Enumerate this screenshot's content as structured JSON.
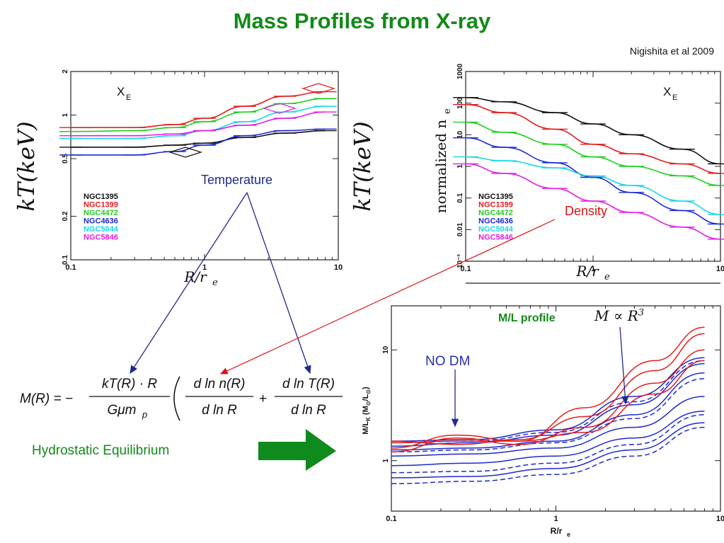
{
  "title": "Mass Profiles from X-ray",
  "citation": "Nigishita et al 2009",
  "annotations": {
    "temperature": "Temperature",
    "density": "Density",
    "no_dm": "NO DM",
    "ml_profile": "M/L profile",
    "hydrostatic": "Hydrostatic Equilibrium",
    "m_prop": "M ∝ R",
    "m_prop_exp": "3"
  },
  "colors": {
    "title_green": "#138a19",
    "arrow_green": "#0f8a1c",
    "navy": "#1f2a8a",
    "red": "#dd1111"
  },
  "equation": {
    "lhs": "M(R) = −",
    "frac1_num": "kT(R) · R",
    "frac1_den": "Gμm",
    "frac1_den_sub": "p",
    "frac2_num": "d ln n(R)",
    "frac2_den": "d ln R",
    "plus": "+",
    "frac3_num": "d ln T(R)",
    "frac3_den": "d ln R"
  },
  "chart_data": [
    {
      "type": "line",
      "panel": "temperature",
      "panel_label": "X",
      "panel_label_sub": "E",
      "ylabel": "kT(keV)",
      "xlabel": "R/r",
      "xlabel_sub": "e",
      "xscale": "log",
      "yscale": "log",
      "xlim": [
        0.1,
        10
      ],
      "ylim": [
        0.1,
        2
      ],
      "xticks": [
        "0.1",
        "1",
        "10"
      ],
      "yticks": [
        {
          "v": 0.1,
          "label": "0.1"
        },
        {
          "v": 0.2,
          "label": "0.2"
        },
        {
          "v": 0.5,
          "label": "0.5"
        },
        {
          "v": 1,
          "label": "1"
        },
        {
          "v": 2,
          "label": "2"
        }
      ],
      "legend_position": "bottom-left",
      "series": [
        {
          "name": "NGC1395",
          "color": "#111111",
          "x": [
            0.1,
            0.3,
            0.6,
            1,
            2,
            4,
            8
          ],
          "y": [
            0.6,
            0.6,
            0.62,
            0.64,
            0.7,
            0.75,
            0.78
          ]
        },
        {
          "name": "NGC1399",
          "color": "#e21d1d",
          "x": [
            0.1,
            0.3,
            0.6,
            1,
            2,
            4,
            8
          ],
          "y": [
            0.82,
            0.82,
            0.86,
            0.95,
            1.15,
            1.35,
            1.45
          ]
        },
        {
          "name": "NGC4472",
          "color": "#1fcf1f",
          "x": [
            0.1,
            0.3,
            0.6,
            1,
            2,
            4,
            8
          ],
          "y": [
            0.77,
            0.78,
            0.82,
            0.9,
            1.05,
            1.2,
            1.3
          ]
        },
        {
          "name": "NGC4636",
          "color": "#1f2acf",
          "x": [
            0.1,
            0.3,
            0.6,
            1,
            2,
            4,
            8
          ],
          "y": [
            0.53,
            0.53,
            0.56,
            0.62,
            0.72,
            0.78,
            0.8
          ]
        },
        {
          "name": "NGC5044",
          "color": "#19d6e6",
          "x": [
            0.1,
            0.3,
            0.6,
            1,
            2,
            4,
            8
          ],
          "y": [
            0.69,
            0.69,
            0.72,
            0.78,
            0.9,
            1.05,
            1.15
          ]
        },
        {
          "name": "NGC5846",
          "color": "#e21de6",
          "x": [
            0.1,
            0.3,
            0.6,
            1,
            2,
            4,
            8
          ],
          "y": [
            0.72,
            0.72,
            0.74,
            0.78,
            0.85,
            0.95,
            1.05
          ]
        }
      ]
    },
    {
      "type": "line",
      "panel": "density",
      "panel_label": "X",
      "panel_label_sub": "E",
      "ylabel": "normalized n",
      "ylabel_sub": "e",
      "xlabel": "R/r",
      "xlabel_sub": "e",
      "xscale": "log",
      "yscale": "log",
      "xlim": [
        0.1,
        10
      ],
      "ylim": [
        0.001,
        1000
      ],
      "xticks": [
        "0.1",
        "1",
        "10"
      ],
      "yticks": [
        {
          "v": 0.001,
          "label": "10⁻³"
        },
        {
          "v": 0.01,
          "label": "0.01"
        },
        {
          "v": 0.1,
          "label": "0.1"
        },
        {
          "v": 1,
          "label": "1"
        },
        {
          "v": 10,
          "label": "10"
        },
        {
          "v": 100,
          "label": "100"
        },
        {
          "v": 1000,
          "label": "1000"
        }
      ],
      "legend_position": "bottom-left",
      "series": [
        {
          "name": "NGC1395",
          "color": "#111111",
          "x": [
            0.1,
            0.2,
            0.5,
            1,
            2,
            5,
            10
          ],
          "y": [
            150,
            110,
            50,
            22,
            10,
            3.5,
            1.2
          ]
        },
        {
          "name": "NGC1399",
          "color": "#e21d1d",
          "x": [
            0.1,
            0.2,
            0.5,
            1,
            2,
            5,
            10
          ],
          "y": [
            90,
            50,
            15,
            5,
            2.5,
            1.2,
            0.6
          ]
        },
        {
          "name": "NGC4472",
          "color": "#1fcf1f",
          "x": [
            0.1,
            0.2,
            0.5,
            1,
            2,
            5,
            10
          ],
          "y": [
            25,
            12,
            5,
            2,
            1,
            0.5,
            0.25
          ]
        },
        {
          "name": "NGC4636",
          "color": "#1f2acf",
          "x": [
            0.1,
            0.2,
            0.5,
            1,
            2,
            5,
            10
          ],
          "y": [
            8,
            4,
            1.3,
            0.45,
            0.15,
            0.04,
            0.015
          ]
        },
        {
          "name": "NGC5044",
          "color": "#19d6e6",
          "x": [
            0.1,
            0.2,
            0.5,
            1,
            2,
            5,
            10
          ],
          "y": [
            2,
            1.5,
            0.9,
            0.5,
            0.25,
            0.08,
            0.03
          ]
        },
        {
          "name": "NGC5846",
          "color": "#e21de6",
          "x": [
            0.1,
            0.2,
            0.5,
            1,
            2,
            5,
            10
          ],
          "y": [
            1.2,
            0.6,
            0.2,
            0.08,
            0.035,
            0.012,
            0.005
          ]
        }
      ]
    },
    {
      "type": "line",
      "panel": "ml_profile",
      "ylabel": "M/L",
      "ylabel_sub": "K",
      "ylabel_units": "(M",
      "ylabel_units_mid": "/L",
      "ylabel_units_end": ")",
      "ylabel_units_sub": "⊙",
      "xlabel": "R/r",
      "xlabel_sub": "e",
      "xscale": "log",
      "yscale": "log",
      "xlim": [
        0.1,
        10
      ],
      "ylim": [
        0.35,
        25
      ],
      "xticks": [
        "0.1",
        "1",
        "10"
      ],
      "yticks": [
        {
          "v": 1,
          "label": "1"
        },
        {
          "v": 10,
          "label": "10"
        }
      ],
      "series": [
        {
          "name": "",
          "color": "#1f2acf",
          "style": "solid",
          "x": [
            0.1,
            0.3,
            1,
            3,
            8
          ],
          "y": [
            1.5,
            1.55,
            1.9,
            3.8,
            8.5
          ]
        },
        {
          "name": "",
          "color": "#1f2acf",
          "style": "solid",
          "x": [
            0.1,
            0.3,
            1,
            3,
            8
          ],
          "y": [
            1.35,
            1.45,
            1.7,
            3.2,
            7.5
          ]
        },
        {
          "name": "",
          "color": "#1f2acf",
          "style": "solid",
          "x": [
            0.1,
            0.3,
            1,
            3,
            8
          ],
          "y": [
            1.25,
            1.3,
            1.5,
            2.6,
            6.2
          ]
        },
        {
          "name": "",
          "color": "#1f2acf",
          "style": "solid",
          "x": [
            0.1,
            0.3,
            1,
            3,
            8
          ],
          "y": [
            1.1,
            1.15,
            1.3,
            2.0,
            3.8
          ]
        },
        {
          "name": "",
          "color": "#1f2acf",
          "style": "solid",
          "x": [
            0.1,
            0.3,
            1,
            3,
            8
          ],
          "y": [
            0.9,
            0.95,
            1.1,
            1.6,
            2.8
          ]
        },
        {
          "name": "",
          "color": "#1f2acf",
          "style": "solid",
          "x": [
            0.1,
            0.3,
            1,
            3,
            8
          ],
          "y": [
            0.7,
            0.72,
            0.85,
            1.25,
            2.2
          ]
        },
        {
          "name": "",
          "color": "#1f2acf",
          "style": "dashed",
          "x": [
            0.1,
            0.3,
            1,
            3,
            8
          ],
          "y": [
            1.45,
            1.5,
            1.8,
            3.4,
            8.0
          ]
        },
        {
          "name": "",
          "color": "#1f2acf",
          "style": "dashed",
          "x": [
            0.1,
            0.3,
            1,
            3,
            8
          ],
          "y": [
            1.2,
            1.25,
            1.45,
            2.4,
            5.5
          ]
        },
        {
          "name": "",
          "color": "#1f2acf",
          "style": "dashed",
          "x": [
            0.1,
            0.3,
            1,
            3,
            8
          ],
          "y": [
            0.78,
            0.8,
            0.95,
            1.4,
            2.6
          ]
        },
        {
          "name": "",
          "color": "#1f2acf",
          "style": "dashed",
          "x": [
            0.1,
            0.3,
            1,
            3,
            8
          ],
          "y": [
            0.62,
            0.65,
            0.75,
            1.1,
            2.0
          ]
        },
        {
          "name": "",
          "color": "#e21d1d",
          "style": "solid",
          "x": [
            0.1,
            0.25,
            0.6,
            1.5,
            4,
            8
          ],
          "y": [
            1.3,
            1.7,
            1.5,
            3.0,
            8.0,
            16.0
          ]
        },
        {
          "name": "",
          "color": "#e21d1d",
          "style": "solid",
          "x": [
            0.1,
            0.25,
            0.6,
            1.5,
            4,
            8
          ],
          "y": [
            1.5,
            1.4,
            1.55,
            2.5,
            6.5,
            14.0
          ]
        },
        {
          "name": "",
          "color": "#e21d1d",
          "style": "solid",
          "x": [
            0.1,
            0.25,
            0.6,
            1.5,
            4,
            8
          ],
          "y": [
            1.2,
            1.6,
            1.4,
            2.0,
            5.0,
            10.0
          ]
        },
        {
          "name": "",
          "color": "#e21d1d",
          "style": "solid",
          "x": [
            0.1,
            0.25,
            0.6,
            1.5,
            4,
            8
          ],
          "y": [
            1.45,
            1.5,
            1.5,
            1.8,
            4.0,
            8.0
          ]
        }
      ]
    }
  ]
}
